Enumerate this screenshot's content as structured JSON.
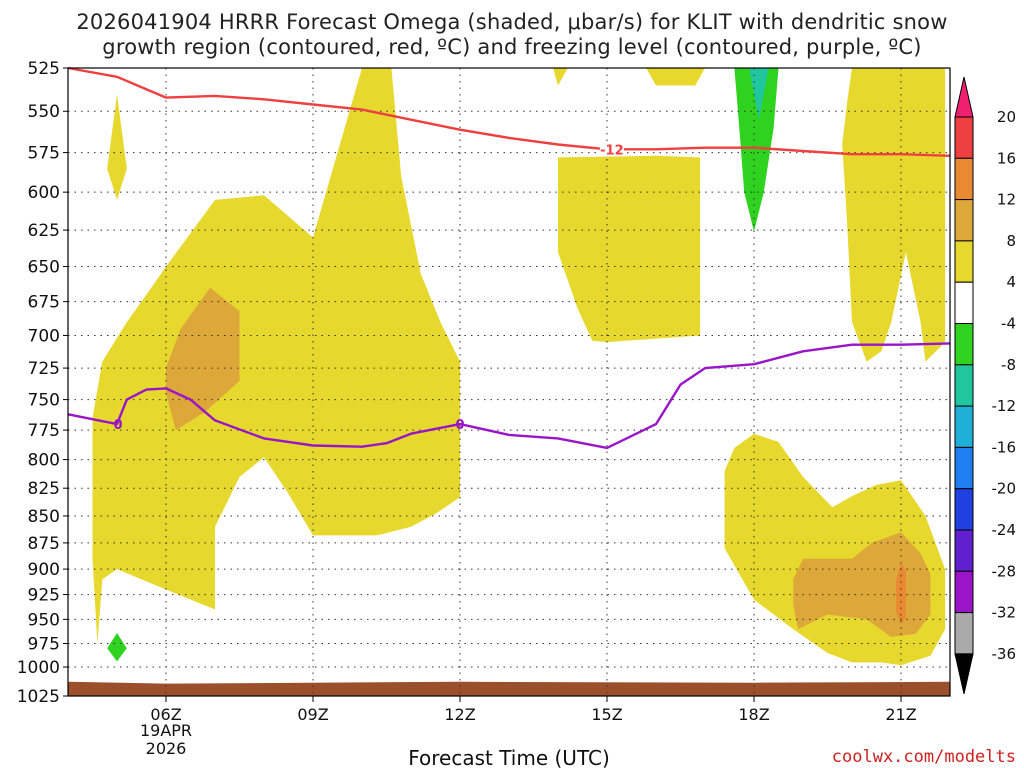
{
  "title_line1": "2026041904 HRRR Forecast Omega (shaded, μbar/s) for KLIT with dendritic snow",
  "title_line2": "growth region (contoured, red, ºC) and freezing level (contoured, purple, ºC)",
  "xlabel": "Forecast Time (UTC)",
  "credit": "coolwx.com/modelts",
  "date_labels": [
    "19APR",
    "2026"
  ],
  "colors": {
    "omega_4_8": "#e6d82d",
    "omega_8_12": "#dea73a",
    "omega_12_16": "#e98a32",
    "omega_neg4_neg8": "#2fd21f",
    "omega_neg8_neg12": "#20c79e",
    "ground": "#9b4f2a",
    "dgz_contour": "#ee4040",
    "freezing_contour": "#9a15c8"
  },
  "chart_data": {
    "type": "heatmap",
    "title": "2026041904 HRRR Forecast Omega (shaded, μbar/s) for KLIT with dendritic snow growth region (contoured, red, ºC) and freezing level (contoured, purple, ºC)",
    "xlabel": "Forecast Time (UTC)",
    "ylabel": "",
    "x_ticks": [
      {
        "hour": 6,
        "label": "06Z"
      },
      {
        "hour": 9,
        "label": "09Z"
      },
      {
        "hour": 12,
        "label": "12Z"
      },
      {
        "hour": 15,
        "label": "15Z"
      },
      {
        "hour": 18,
        "label": "18Z"
      },
      {
        "hour": 21,
        "label": "21Z"
      }
    ],
    "xlim": [
      4,
      22
    ],
    "y_ticks": [
      525,
      550,
      575,
      600,
      625,
      650,
      675,
      700,
      725,
      750,
      775,
      800,
      825,
      850,
      875,
      900,
      925,
      950,
      975,
      1000,
      1025
    ],
    "ylim": [
      1025,
      525
    ],
    "y_scale": "log-pressure",
    "grid": true,
    "colorbar": {
      "levels": [
        "20",
        "16",
        "12",
        "8",
        "4",
        "-4",
        "-8",
        "-12",
        "-16",
        "-20",
        "-24",
        "-28",
        "-32",
        "-36"
      ],
      "colors": [
        "#f02070",
        "#ee4040",
        "#e98a32",
        "#dea73a",
        "#e6d82d",
        "#ffffff",
        "#2fd21f",
        "#20c79e",
        "#1fb0d8",
        "#1f7ff0",
        "#2040e0",
        "#6020d0",
        "#9a15c8",
        "#aaaaaa",
        "#000000"
      ]
    },
    "dgz_contour": {
      "label": "-12",
      "points": [
        [
          4.0,
          525
        ],
        [
          5.0,
          530
        ],
        [
          6.0,
          542
        ],
        [
          7.0,
          541
        ],
        [
          8.0,
          543
        ],
        [
          9.0,
          546
        ],
        [
          10.0,
          549
        ],
        [
          11.0,
          555
        ],
        [
          12.0,
          561
        ],
        [
          13.0,
          566
        ],
        [
          14.0,
          570
        ],
        [
          15.0,
          573
        ],
        [
          16.0,
          573
        ],
        [
          17.0,
          572
        ],
        [
          18.0,
          572
        ],
        [
          19.0,
          574
        ],
        [
          20.0,
          576
        ],
        [
          21.0,
          576
        ],
        [
          22.0,
          577
        ]
      ]
    },
    "freezing_contour": {
      "label": "0",
      "points": [
        [
          4.0,
          762
        ],
        [
          5.0,
          770
        ],
        [
          5.2,
          750
        ],
        [
          5.6,
          742
        ],
        [
          6.0,
          741
        ],
        [
          6.5,
          750
        ],
        [
          7.0,
          767
        ],
        [
          8.0,
          782
        ],
        [
          9.0,
          788
        ],
        [
          10.0,
          789
        ],
        [
          10.5,
          786
        ],
        [
          11.0,
          778
        ],
        [
          12.0,
          770
        ],
        [
          13.0,
          779
        ],
        [
          14.0,
          782
        ],
        [
          15.0,
          790
        ],
        [
          16.0,
          770
        ],
        [
          16.5,
          738
        ],
        [
          17.0,
          725
        ],
        [
          18.0,
          722
        ],
        [
          19.0,
          712
        ],
        [
          20.0,
          707
        ],
        [
          21.0,
          707
        ],
        [
          22.0,
          706
        ]
      ]
    },
    "regions": [
      {
        "value_range": "4 to 8",
        "color": "#e6d82d",
        "points": [
          [
            4.6,
            975
          ],
          [
            4.5,
            890
          ],
          [
            4.5,
            765
          ],
          [
            4.7,
            720
          ],
          [
            5.2,
            690
          ],
          [
            5.7,
            665
          ],
          [
            6.0,
            650
          ],
          [
            7.0,
            605
          ],
          [
            8.0,
            602
          ],
          [
            9.0,
            630
          ],
          [
            10.0,
            525
          ],
          [
            10.6,
            525
          ],
          [
            10.8,
            590
          ],
          [
            11.2,
            655
          ],
          [
            11.6,
            690
          ],
          [
            12.0,
            720
          ],
          [
            12.0,
            833
          ],
          [
            11.5,
            848
          ],
          [
            11.0,
            860
          ],
          [
            10.3,
            868
          ],
          [
            9.0,
            868
          ],
          [
            8.5,
            830
          ],
          [
            8.0,
            798
          ],
          [
            7.5,
            815
          ],
          [
            7.0,
            860
          ],
          [
            7.0,
            940
          ],
          [
            6.0,
            920
          ],
          [
            5.5,
            910
          ],
          [
            5.0,
            900
          ],
          [
            4.7,
            910
          ],
          [
            4.6,
            975
          ]
        ]
      },
      {
        "value_range": "4 to 8",
        "color": "#e6d82d",
        "points": [
          [
            5.0,
            540
          ],
          [
            5.2,
            585
          ],
          [
            5.0,
            605
          ],
          [
            4.8,
            585
          ]
        ]
      },
      {
        "value_range": "4 to 8",
        "color": "#e6d82d",
        "points": [
          [
            14.0,
            578
          ],
          [
            16.0,
            577
          ],
          [
            16.9,
            578
          ],
          [
            16.9,
            700
          ],
          [
            15.0,
            705
          ],
          [
            14.7,
            704
          ],
          [
            14.4,
            680
          ],
          [
            14.0,
            640
          ]
        ]
      },
      {
        "value_range": "4 to 8",
        "color": "#e6d82d",
        "points": [
          [
            20.0,
            525
          ],
          [
            21.9,
            525
          ],
          [
            21.9,
            705
          ],
          [
            21.5,
            720
          ],
          [
            21.4,
            690
          ],
          [
            21.1,
            640
          ],
          [
            20.8,
            690
          ],
          [
            20.6,
            712
          ],
          [
            20.3,
            720
          ],
          [
            20.0,
            690
          ],
          [
            19.9,
            620
          ],
          [
            19.8,
            570
          ],
          [
            19.9,
            545
          ]
        ]
      },
      {
        "value_range": "4 to 8",
        "color": "#e6d82d",
        "points": [
          [
            17.4,
            810
          ],
          [
            17.6,
            790
          ],
          [
            18.0,
            778
          ],
          [
            18.5,
            785
          ],
          [
            19.0,
            815
          ],
          [
            19.6,
            842
          ],
          [
            20.0,
            832
          ],
          [
            20.5,
            822
          ],
          [
            21.0,
            818
          ],
          [
            21.5,
            850
          ],
          [
            21.9,
            900
          ],
          [
            21.9,
            960
          ],
          [
            21.6,
            988
          ],
          [
            21.0,
            998
          ],
          [
            20.6,
            995
          ],
          [
            20.0,
            995
          ],
          [
            19.5,
            985
          ],
          [
            18.8,
            960
          ],
          [
            18.0,
            930
          ],
          [
            17.4,
            880
          ]
        ]
      },
      {
        "value_range": "4 to 8",
        "color": "#e6d82d",
        "points": [
          [
            13.9,
            525
          ],
          [
            14.2,
            525
          ],
          [
            14.0,
            535
          ]
        ]
      },
      {
        "value_range": "4 to 8",
        "color": "#e6d82d",
        "points": [
          [
            15.8,
            525
          ],
          [
            17.0,
            525
          ],
          [
            16.8,
            535
          ],
          [
            16.0,
            535
          ]
        ]
      },
      {
        "value_range": "8 to 12",
        "color": "#dea73a",
        "points": [
          [
            6.0,
            725
          ],
          [
            6.3,
            695
          ],
          [
            6.9,
            665
          ],
          [
            7.5,
            682
          ],
          [
            7.5,
            735
          ],
          [
            6.8,
            760
          ],
          [
            6.2,
            775
          ],
          [
            6.0,
            745
          ]
        ]
      },
      {
        "value_range": "8 to 12",
        "color": "#dea73a",
        "points": [
          [
            18.8,
            910
          ],
          [
            19.0,
            890
          ],
          [
            19.5,
            890
          ],
          [
            20.0,
            890
          ],
          [
            20.4,
            875
          ],
          [
            21.0,
            865
          ],
          [
            21.4,
            885
          ],
          [
            21.6,
            905
          ],
          [
            21.6,
            945
          ],
          [
            21.3,
            965
          ],
          [
            20.8,
            968
          ],
          [
            20.3,
            950
          ],
          [
            19.5,
            945
          ],
          [
            18.9,
            960
          ],
          [
            18.8,
            935
          ]
        ]
      },
      {
        "value_range": "12 to 16",
        "color": "#e98a32",
        "points": [
          [
            20.9,
            912
          ],
          [
            21.0,
            893
          ],
          [
            21.1,
            902
          ],
          [
            21.1,
            948
          ],
          [
            21.0,
            955
          ],
          [
            20.9,
            942
          ]
        ]
      },
      {
        "value_range": "-4 to -8",
        "color": "#2fd21f",
        "points": [
          [
            17.6,
            525
          ],
          [
            18.5,
            525
          ],
          [
            18.4,
            560
          ],
          [
            18.2,
            600
          ],
          [
            18.0,
            626
          ],
          [
            17.8,
            600
          ],
          [
            17.7,
            560
          ]
        ]
      },
      {
        "value_range": "-8 to -12",
        "color": "#20c79e",
        "points": [
          [
            17.9,
            525
          ],
          [
            18.3,
            525
          ],
          [
            18.1,
            555
          ]
        ]
      },
      {
        "value_range": "-4 to -8",
        "color": "#2fd21f",
        "points": [
          [
            5.0,
            964
          ],
          [
            5.2,
            980
          ],
          [
            5.0,
            994
          ],
          [
            4.8,
            980
          ]
        ]
      }
    ]
  }
}
